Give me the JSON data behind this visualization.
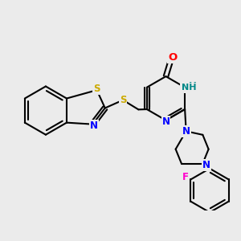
{
  "bg_color": "#ebebeb",
  "bond_color": "#000000",
  "bond_width": 1.5,
  "atom_colors": {
    "S": "#ccaa00",
    "N": "#0000ff",
    "O": "#ff0000",
    "F": "#ff00cc",
    "H_col": "#008888",
    "C": "#000000"
  },
  "font_size": 8.5,
  "fig_size": [
    3.0,
    3.0
  ],
  "dpi": 100,
  "scale": 28
}
